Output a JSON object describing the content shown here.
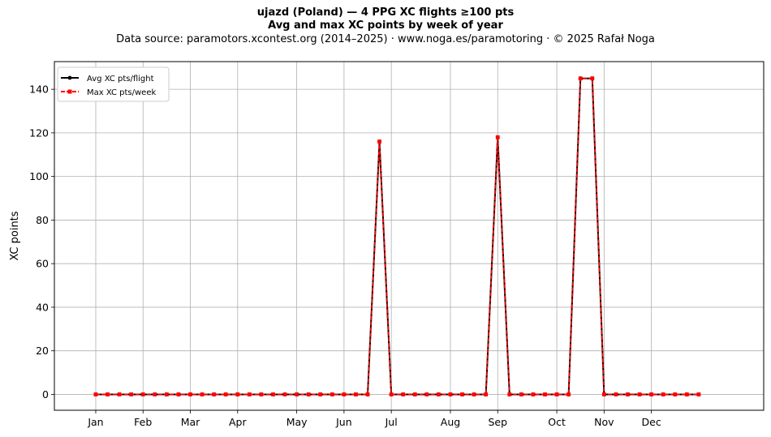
{
  "header": {
    "title": "ujazd (Poland)  —  4 PPG XC flights ≥100 pts",
    "subtitle": "Avg and max XC points by week of year",
    "source": "Data source: paramotors.xcontest.org (2014–2025)  ·  www.noga.es/paramotoring  ·  © 2025 Rafał Noga"
  },
  "chart_data": {
    "type": "line",
    "title": "ujazd (Poland)  —  4 PPG XC flights ≥100 pts",
    "subtitle": "Avg and max XC points by week of year",
    "xlabel": "",
    "ylabel": "XC points",
    "xlim": [
      -2.5,
      57.5
    ],
    "ylim": [
      -7.27,
      152.7
    ],
    "grid": true,
    "legend_position": "top-left",
    "x_ticks": [
      {
        "label": "Jan",
        "week": 1
      },
      {
        "label": "Feb",
        "week": 5
      },
      {
        "label": "Mar",
        "week": 9
      },
      {
        "label": "Apr",
        "week": 13
      },
      {
        "label": "May",
        "week": 18
      },
      {
        "label": "Jun",
        "week": 22
      },
      {
        "label": "Jul",
        "week": 26
      },
      {
        "label": "Aug",
        "week": 31
      },
      {
        "label": "Sep",
        "week": 35
      },
      {
        "label": "Oct",
        "week": 40
      },
      {
        "label": "Nov",
        "week": 44
      },
      {
        "label": "Dec",
        "week": 48
      }
    ],
    "y_ticks": [
      0,
      20,
      40,
      60,
      80,
      100,
      120,
      140
    ],
    "x": [
      1,
      2,
      3,
      4,
      5,
      6,
      7,
      8,
      9,
      10,
      11,
      12,
      13,
      14,
      15,
      16,
      17,
      18,
      19,
      20,
      21,
      22,
      23,
      24,
      25,
      26,
      27,
      28,
      29,
      30,
      31,
      32,
      33,
      34,
      35,
      36,
      37,
      38,
      39,
      40,
      41,
      42,
      43,
      44,
      45,
      46,
      47,
      48,
      49,
      50,
      51,
      52
    ],
    "series": [
      {
        "name": "Avg XC pts/flight",
        "color": "#000000",
        "style": "solid",
        "marker": "circle",
        "values": [
          0,
          0,
          0,
          0,
          0,
          0,
          0,
          0,
          0,
          0,
          0,
          0,
          0,
          0,
          0,
          0,
          0,
          0,
          0,
          0,
          0,
          0,
          0,
          0,
          116,
          0,
          0,
          0,
          0,
          0,
          0,
          0,
          0,
          0,
          118,
          0,
          0,
          0,
          0,
          0,
          0,
          145,
          145,
          0,
          0,
          0,
          0,
          0,
          0,
          0,
          0,
          0
        ]
      },
      {
        "name": "Max XC pts/week",
        "color": "#ff0000",
        "style": "dashed",
        "marker": "square",
        "values": [
          0,
          0,
          0,
          0,
          0,
          0,
          0,
          0,
          0,
          0,
          0,
          0,
          0,
          0,
          0,
          0,
          0,
          0,
          0,
          0,
          0,
          0,
          0,
          0,
          116,
          0,
          0,
          0,
          0,
          0,
          0,
          0,
          0,
          0,
          118,
          0,
          0,
          0,
          0,
          0,
          0,
          145,
          145,
          0,
          0,
          0,
          0,
          0,
          0,
          0,
          0,
          0
        ]
      }
    ]
  }
}
